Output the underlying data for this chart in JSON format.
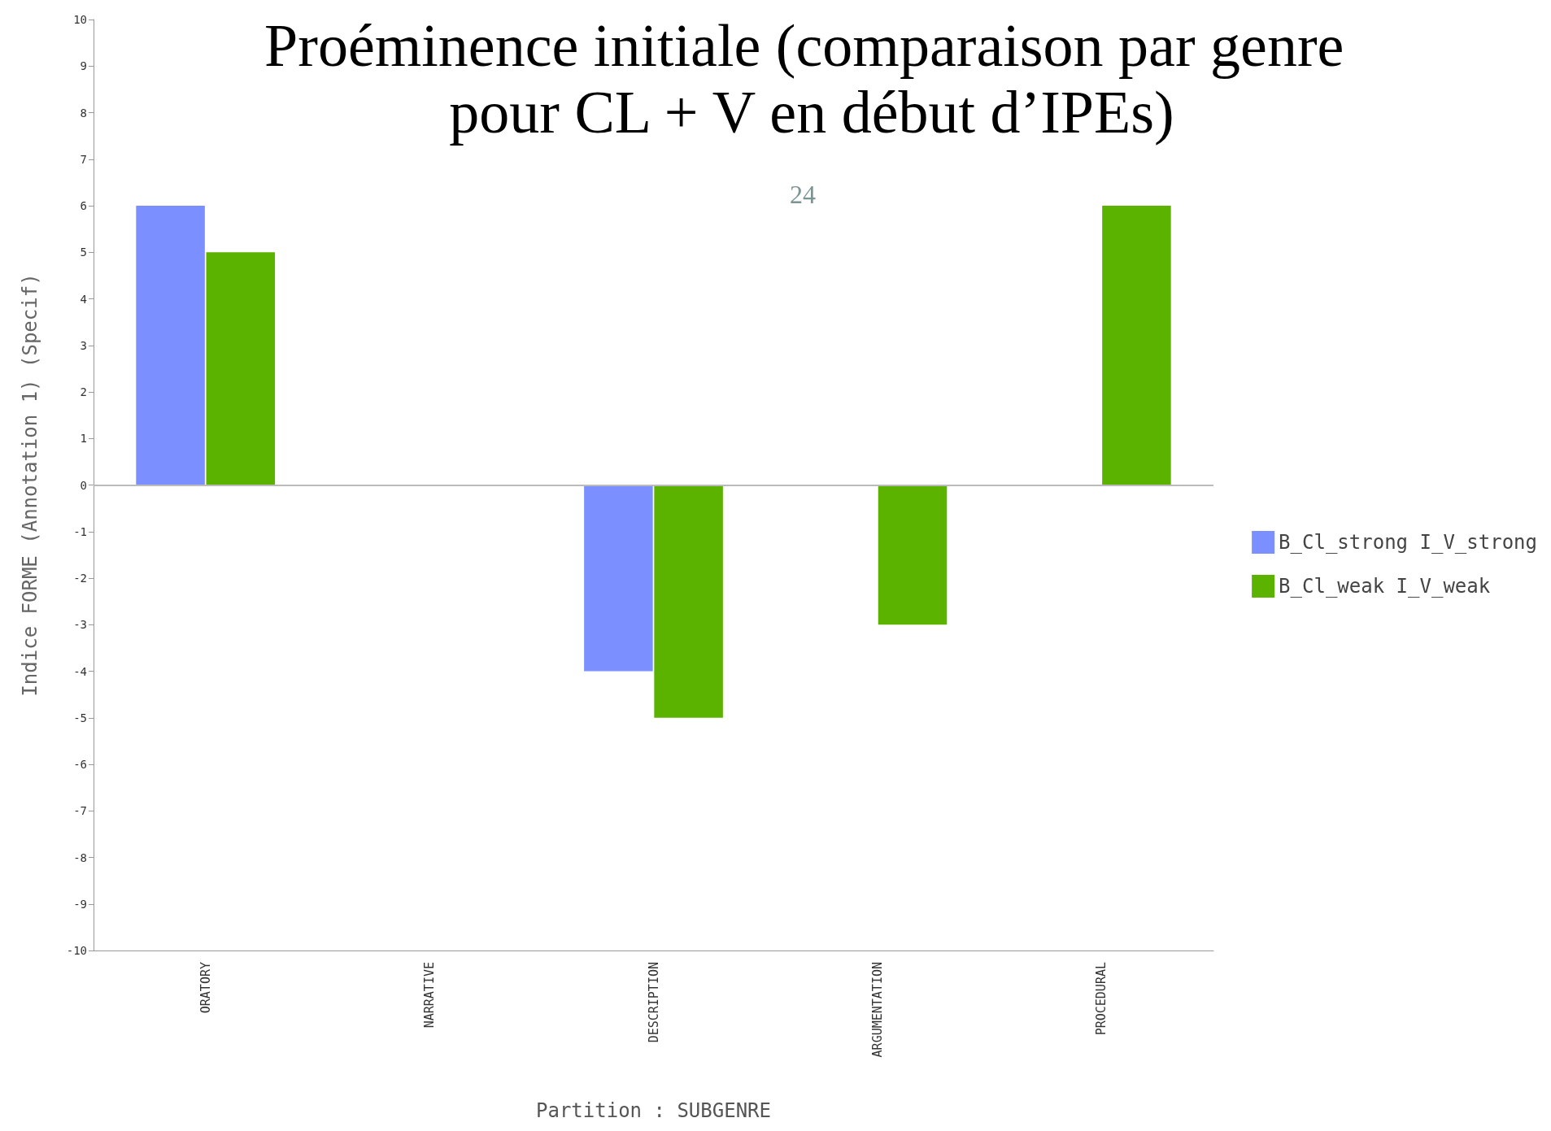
{
  "chart_data": {
    "type": "bar",
    "title": "Proéminence initiale (comparaison par genre pour CL + V en début d’IPEs)",
    "xlabel": "Partition : SUBGENRE",
    "ylabel": "Indice FORME (Annotation 1) (Specif)",
    "annotations": [
      "24"
    ],
    "categories": [
      "ORATORY",
      "NARRATIVE",
      "DESCRIPTION",
      "ARGUMENTATION",
      "PROCEDURAL"
    ],
    "series": [
      {
        "name": "B_Cl_strong I_V_strong",
        "color": "#7b8fff",
        "values": [
          6,
          null,
          -4,
          null,
          null
        ]
      },
      {
        "name": "B_Cl_weak I_V_weak",
        "color": "#5bb300",
        "values": [
          5,
          null,
          -5,
          -3,
          6
        ]
      }
    ],
    "ylim": [
      -10,
      10
    ],
    "yticks": [
      -10,
      -9,
      -8,
      -7,
      -6,
      -5,
      -4,
      -3,
      -2,
      -1,
      0,
      1,
      2,
      3,
      4,
      5,
      6,
      7,
      8,
      9,
      10
    ],
    "grid": false,
    "ref_lines": [
      {
        "axis": "y",
        "value": 0,
        "color": "#bbbbbb"
      }
    ],
    "legend": "right"
  }
}
